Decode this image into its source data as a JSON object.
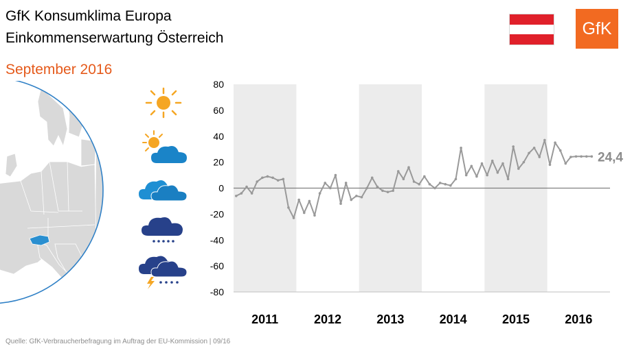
{
  "header": {
    "title_line1": "GfK Konsumklima Europa",
    "title_line2": "Einkommenserwartung Österreich",
    "subtitle": "September 2016"
  },
  "logo": {
    "text": "GfK",
    "color": "#f26a21"
  },
  "flag": {
    "colors": [
      "#e0202a",
      "#ffffff",
      "#e0202a"
    ]
  },
  "weather_icons": [
    "sun-icon",
    "sun-cloud-icon",
    "cloud-icon",
    "rain-cloud-icon",
    "thunderstorm-icon"
  ],
  "source": "Quelle: GfK-Verbraucherbefragung im Auftrag der EU-Kommission | 09/16",
  "chart_data": {
    "type": "line",
    "title": "",
    "xlabel": "",
    "ylabel": "",
    "ylim": [
      -80,
      80
    ],
    "yticks": [
      80,
      60,
      40,
      20,
      0,
      -20,
      -40,
      -60,
      -80
    ],
    "x_start": "2011-01",
    "x_end": "2016-12",
    "categories": [
      "2011",
      "2012",
      "2013",
      "2014",
      "2015",
      "2016"
    ],
    "grid": false,
    "shaded_years": [
      "2011",
      "2013",
      "2015"
    ],
    "zero_line": true,
    "series": [
      {
        "color": "#999999",
        "end_label": "24,4",
        "x": [
          "2011-01",
          "2011-02",
          "2011-03",
          "2011-04",
          "2011-05",
          "2011-06",
          "2011-07",
          "2011-08",
          "2011-09",
          "2011-10",
          "2011-11",
          "2011-12",
          "2012-01",
          "2012-02",
          "2012-03",
          "2012-04",
          "2012-05",
          "2012-06",
          "2012-07",
          "2012-08",
          "2012-09",
          "2012-10",
          "2012-11",
          "2012-12",
          "2013-01",
          "2013-02",
          "2013-03",
          "2013-04",
          "2013-05",
          "2013-06",
          "2013-07",
          "2013-08",
          "2013-09",
          "2013-10",
          "2013-11",
          "2013-12",
          "2014-01",
          "2014-02",
          "2014-03",
          "2014-04",
          "2014-05",
          "2014-06",
          "2014-07",
          "2014-08",
          "2014-09",
          "2014-10",
          "2014-11",
          "2014-12",
          "2015-01",
          "2015-02",
          "2015-03",
          "2015-04",
          "2015-05",
          "2015-06",
          "2015-07",
          "2015-08",
          "2015-09",
          "2015-10",
          "2015-11",
          "2015-12",
          "2016-01",
          "2016-02",
          "2016-03",
          "2016-04",
          "2016-05",
          "2016-06",
          "2016-07",
          "2016-08",
          "2016-09"
        ],
        "y": [
          -6,
          -4,
          1,
          -4,
          5,
          8,
          9,
          8,
          6,
          7,
          -15,
          -23,
          -9,
          -19,
          -10,
          -21,
          -4,
          4,
          0,
          10,
          -12,
          4,
          -9,
          -6,
          -7,
          0,
          8,
          1,
          -2,
          -3,
          -2,
          13,
          7,
          16,
          5,
          3,
          9,
          3,
          0,
          4,
          3,
          2,
          7,
          31,
          10,
          17,
          9,
          19,
          10,
          21,
          12,
          19,
          7,
          32,
          15,
          20,
          27,
          31,
          24,
          37,
          18,
          35,
          29,
          19,
          24,
          24.4,
          24.4,
          24.4,
          24.4
        ]
      }
    ]
  }
}
